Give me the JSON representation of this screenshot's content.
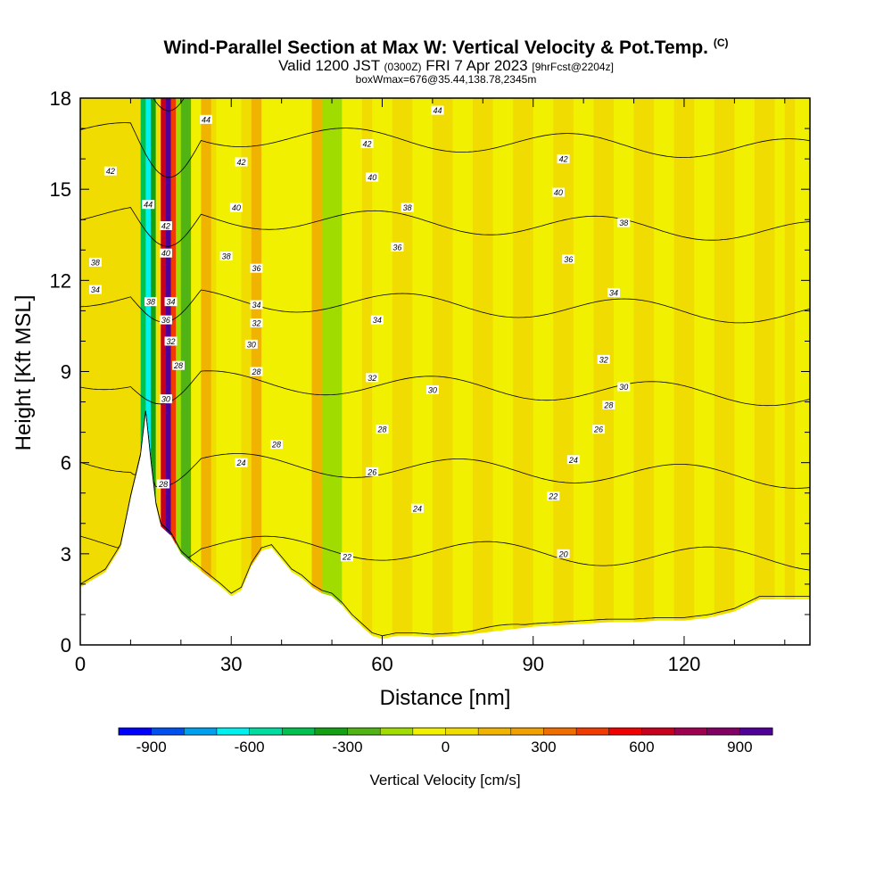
{
  "header": {
    "title": "Wind-Parallel Section at Max W: Vertical Velocity & Pot.Temp.",
    "copyright": "(C)",
    "valid_prefix": "Valid 1200 JST",
    "utc": "(0300Z)",
    "valid_date": "FRI 7 Apr 2023",
    "forecast": "[9hrFcst@2204z]",
    "boxw": "boxWmax=676@35.44,138.78,2345m"
  },
  "chart_data": {
    "type": "heatmap",
    "xlabel": "Distance [nm]",
    "ylabel": "Height [Kft MSL]",
    "xlim": [
      0,
      145
    ],
    "ylim": [
      0,
      18
    ],
    "x_ticks": [
      0,
      30,
      60,
      90,
      120
    ],
    "y_ticks": [
      0,
      3,
      6,
      9,
      12,
      15,
      18
    ],
    "colorbar": {
      "label": "Vertical Velocity [cm/s]",
      "range": [
        -1000,
        1000
      ],
      "tick_values": [
        -900,
        -600,
        -300,
        0,
        300,
        600,
        900
      ],
      "tick_labels": [
        "-900",
        "-600",
        "-300",
        "0",
        "300",
        "600",
        "900"
      ],
      "colors": [
        "#0000ff",
        "#0050f0",
        "#00a0f0",
        "#00f0f0",
        "#00dca0",
        "#00c050",
        "#14a014",
        "#50b414",
        "#a0dc00",
        "#f0f000",
        "#f0dc00",
        "#f0b400",
        "#f0a000",
        "#f06e00",
        "#f03c00",
        "#f00000",
        "#c8001e",
        "#a00050",
        "#820064",
        "#500096"
      ]
    },
    "fill_columns": [
      {
        "x": 0,
        "w": 25
      },
      {
        "x": 3,
        "w": 40
      },
      {
        "x": 6,
        "w": 25
      },
      {
        "x": 8,
        "w": 60
      },
      {
        "x": 10,
        "w": 20
      },
      {
        "x": 12,
        "w": -450
      },
      {
        "x": 13,
        "w": -700
      },
      {
        "x": 14,
        "w": -350
      },
      {
        "x": 15,
        "w": 50
      },
      {
        "x": 16,
        "w": 650
      },
      {
        "x": 17,
        "w": 900
      },
      {
        "x": 18,
        "w": 400
      },
      {
        "x": 19,
        "w": -120
      },
      {
        "x": 20,
        "w": -250
      },
      {
        "x": 22,
        "w": -50
      },
      {
        "x": 24,
        "w": 150
      },
      {
        "x": 26,
        "w": 60
      },
      {
        "x": 27,
        "w": -80
      },
      {
        "x": 30,
        "w": -30
      },
      {
        "x": 32,
        "w": 20
      },
      {
        "x": 34,
        "w": 110
      },
      {
        "x": 36,
        "w": -40
      },
      {
        "x": 40,
        "w": -90
      },
      {
        "x": 44,
        "w": -30
      },
      {
        "x": 46,
        "w": 130
      },
      {
        "x": 48,
        "w": -200
      },
      {
        "x": 52,
        "w": -40
      },
      {
        "x": 56,
        "w": 90
      },
      {
        "x": 58,
        "w": -90
      },
      {
        "x": 62,
        "w": 20
      },
      {
        "x": 66,
        "w": -30
      },
      {
        "x": 70,
        "w": 30
      },
      {
        "x": 74,
        "w": -40
      },
      {
        "x": 78,
        "w": 40
      },
      {
        "x": 82,
        "w": -30
      },
      {
        "x": 86,
        "w": 30
      },
      {
        "x": 90,
        "w": -40
      },
      {
        "x": 94,
        "w": 25
      },
      {
        "x": 98,
        "w": -30
      },
      {
        "x": 102,
        "w": 30
      },
      {
        "x": 106,
        "w": -30
      },
      {
        "x": 110,
        "w": 25
      },
      {
        "x": 114,
        "w": -20
      },
      {
        "x": 118,
        "w": 30
      },
      {
        "x": 122,
        "w": -30
      },
      {
        "x": 126,
        "w": 25
      },
      {
        "x": 130,
        "w": -30
      },
      {
        "x": 134,
        "w": 30
      },
      {
        "x": 138,
        "w": -30
      },
      {
        "x": 140,
        "w": 25
      },
      {
        "x": 142,
        "w": -20
      },
      {
        "x": 145,
        "w": 20
      }
    ],
    "terrain": [
      [
        0,
        1.9
      ],
      [
        2,
        2.1
      ],
      [
        5,
        2.4
      ],
      [
        8,
        3.2
      ],
      [
        10,
        4.8
      ],
      [
        12,
        6.2
      ],
      [
        13,
        7.6
      ],
      [
        14,
        6.0
      ],
      [
        15,
        4.6
      ],
      [
        16,
        3.9
      ],
      [
        18,
        3.6
      ],
      [
        20,
        3.0
      ],
      [
        22,
        2.7
      ],
      [
        25,
        2.3
      ],
      [
        28,
        1.9
      ],
      [
        30,
        1.6
      ],
      [
        32,
        1.8
      ],
      [
        34,
        2.6
      ],
      [
        36,
        3.1
      ],
      [
        38,
        3.2
      ],
      [
        40,
        2.8
      ],
      [
        42,
        2.4
      ],
      [
        44,
        2.2
      ],
      [
        46,
        1.9
      ],
      [
        48,
        1.7
      ],
      [
        50,
        1.6
      ],
      [
        52,
        1.3
      ],
      [
        54,
        0.9
      ],
      [
        56,
        0.6
      ],
      [
        58,
        0.3
      ],
      [
        60,
        0.2
      ],
      [
        63,
        0.3
      ],
      [
        66,
        0.3
      ],
      [
        70,
        0.25
      ],
      [
        75,
        0.3
      ],
      [
        80,
        0.4
      ],
      [
        85,
        0.5
      ],
      [
        90,
        0.6
      ],
      [
        95,
        0.65
      ],
      [
        100,
        0.7
      ],
      [
        105,
        0.75
      ],
      [
        110,
        0.75
      ],
      [
        115,
        0.8
      ],
      [
        120,
        0.8
      ],
      [
        125,
        0.9
      ],
      [
        130,
        1.1
      ],
      [
        135,
        1.5
      ],
      [
        140,
        1.5
      ],
      [
        145,
        1.5
      ]
    ],
    "contour_levels": [
      20,
      22,
      24,
      26,
      28,
      30,
      32,
      34,
      36,
      38,
      40,
      42,
      44
    ],
    "contour_labels": [
      {
        "text": "42",
        "x": 6,
        "y": 15.6
      },
      {
        "text": "38",
        "x": 3,
        "y": 12.6
      },
      {
        "text": "34",
        "x": 3,
        "y": 11.7
      },
      {
        "text": "44",
        "x": 25,
        "y": 17.3
      },
      {
        "text": "42",
        "x": 32,
        "y": 15.9
      },
      {
        "text": "40",
        "x": 31,
        "y": 14.4
      },
      {
        "text": "38",
        "x": 29,
        "y": 12.8
      },
      {
        "text": "36",
        "x": 35,
        "y": 12.4
      },
      {
        "text": "34",
        "x": 35,
        "y": 11.2
      },
      {
        "text": "32",
        "x": 35,
        "y": 10.6
      },
      {
        "text": "30",
        "x": 34,
        "y": 9.9
      },
      {
        "text": "28",
        "x": 35,
        "y": 9.0
      },
      {
        "text": "28",
        "x": 39,
        "y": 6.6
      },
      {
        "text": "24",
        "x": 32,
        "y": 6.0
      },
      {
        "text": "44",
        "x": 71,
        "y": 17.6
      },
      {
        "text": "42",
        "x": 57,
        "y": 16.5
      },
      {
        "text": "40",
        "x": 58,
        "y": 15.4
      },
      {
        "text": "38",
        "x": 65,
        "y": 14.4
      },
      {
        "text": "36",
        "x": 63,
        "y": 13.1
      },
      {
        "text": "34",
        "x": 59,
        "y": 10.7
      },
      {
        "text": "32",
        "x": 58,
        "y": 8.8
      },
      {
        "text": "30",
        "x": 70,
        "y": 8.4
      },
      {
        "text": "28",
        "x": 60,
        "y": 7.1
      },
      {
        "text": "26",
        "x": 58,
        "y": 5.7
      },
      {
        "text": "24",
        "x": 67,
        "y": 4.5
      },
      {
        "text": "22",
        "x": 53,
        "y": 2.9
      },
      {
        "text": "42",
        "x": 96,
        "y": 16.0
      },
      {
        "text": "40",
        "x": 95,
        "y": 14.9
      },
      {
        "text": "38",
        "x": 108,
        "y": 13.9
      },
      {
        "text": "36",
        "x": 97,
        "y": 12.7
      },
      {
        "text": "34",
        "x": 106,
        "y": 11.6
      },
      {
        "text": "32",
        "x": 104,
        "y": 9.4
      },
      {
        "text": "30",
        "x": 108,
        "y": 8.5
      },
      {
        "text": "28",
        "x": 105,
        "y": 7.9
      },
      {
        "text": "26",
        "x": 103,
        "y": 7.1
      },
      {
        "text": "24",
        "x": 98,
        "y": 6.1
      },
      {
        "text": "22",
        "x": 94,
        "y": 4.9
      },
      {
        "text": "20",
        "x": 96,
        "y": 3.0
      },
      {
        "text": "44",
        "x": 13.5,
        "y": 14.5
      },
      {
        "text": "38",
        "x": 14,
        "y": 11.3
      },
      {
        "text": "42",
        "x": 17,
        "y": 13.8
      },
      {
        "text": "40",
        "x": 17,
        "y": 12.9
      },
      {
        "text": "36",
        "x": 17,
        "y": 10.7
      },
      {
        "text": "34",
        "x": 18,
        "y": 11.3
      },
      {
        "text": "32",
        "x": 18,
        "y": 10.0
      },
      {
        "text": "28",
        "x": 19.5,
        "y": 9.2
      },
      {
        "text": "30",
        "x": 17,
        "y": 8.1
      },
      {
        "text": "28",
        "x": 16.5,
        "y": 5.3
      }
    ]
  }
}
